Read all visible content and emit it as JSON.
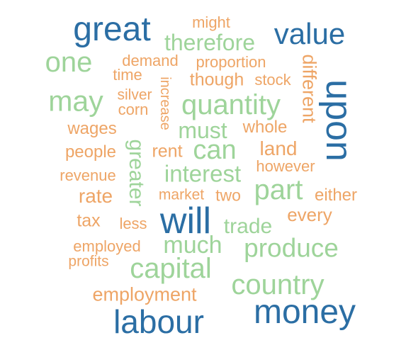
{
  "words": [
    {
      "text": "great",
      "color": "#2b6ea4"
    },
    {
      "text": "might",
      "color": "#eea566"
    },
    {
      "text": "value",
      "color": "#2b6ea4"
    },
    {
      "text": "therefore",
      "color": "#9ed49a"
    },
    {
      "text": "one",
      "color": "#9ed49a"
    },
    {
      "text": "demand",
      "color": "#eea566"
    },
    {
      "text": "proportion",
      "color": "#eea566"
    },
    {
      "text": "different",
      "color": "#eea566"
    },
    {
      "text": "time",
      "color": "#eea566"
    },
    {
      "text": "increase",
      "color": "#eea566"
    },
    {
      "text": "though",
      "color": "#eea566"
    },
    {
      "text": "stock",
      "color": "#eea566"
    },
    {
      "text": "upon",
      "color": "#2b6ea4"
    },
    {
      "text": "may",
      "color": "#9ed49a"
    },
    {
      "text": "silver",
      "color": "#eea566"
    },
    {
      "text": "corn",
      "color": "#eea566"
    },
    {
      "text": "quantity",
      "color": "#9ed49a"
    },
    {
      "text": "wages",
      "color": "#eea566"
    },
    {
      "text": "must",
      "color": "#9ed49a"
    },
    {
      "text": "whole",
      "color": "#eea566"
    },
    {
      "text": "greater",
      "color": "#9ed49a"
    },
    {
      "text": "people",
      "color": "#eea566"
    },
    {
      "text": "rent",
      "color": "#eea566"
    },
    {
      "text": "can",
      "color": "#9ed49a"
    },
    {
      "text": "land",
      "color": "#eea566"
    },
    {
      "text": "however",
      "color": "#eea566"
    },
    {
      "text": "revenue",
      "color": "#eea566"
    },
    {
      "text": "interest",
      "color": "#9ed49a"
    },
    {
      "text": "rate",
      "color": "#eea566"
    },
    {
      "text": "market",
      "color": "#eea566"
    },
    {
      "text": "two",
      "color": "#eea566"
    },
    {
      "text": "part",
      "color": "#9ed49a"
    },
    {
      "text": "either",
      "color": "#eea566"
    },
    {
      "text": "tax",
      "color": "#eea566"
    },
    {
      "text": "less",
      "color": "#eea566"
    },
    {
      "text": "will",
      "color": "#2b6ea4"
    },
    {
      "text": "trade",
      "color": "#9ed49a"
    },
    {
      "text": "every",
      "color": "#eea566"
    },
    {
      "text": "employed",
      "color": "#eea566"
    },
    {
      "text": "much",
      "color": "#9ed49a"
    },
    {
      "text": "produce",
      "color": "#9ed49a"
    },
    {
      "text": "profits",
      "color": "#eea566"
    },
    {
      "text": "capital",
      "color": "#9ed49a"
    },
    {
      "text": "country",
      "color": "#9ed49a"
    },
    {
      "text": "employment",
      "color": "#eea566"
    },
    {
      "text": "labour",
      "color": "#2b6ea4"
    },
    {
      "text": "money",
      "color": "#2b6ea4"
    }
  ]
}
